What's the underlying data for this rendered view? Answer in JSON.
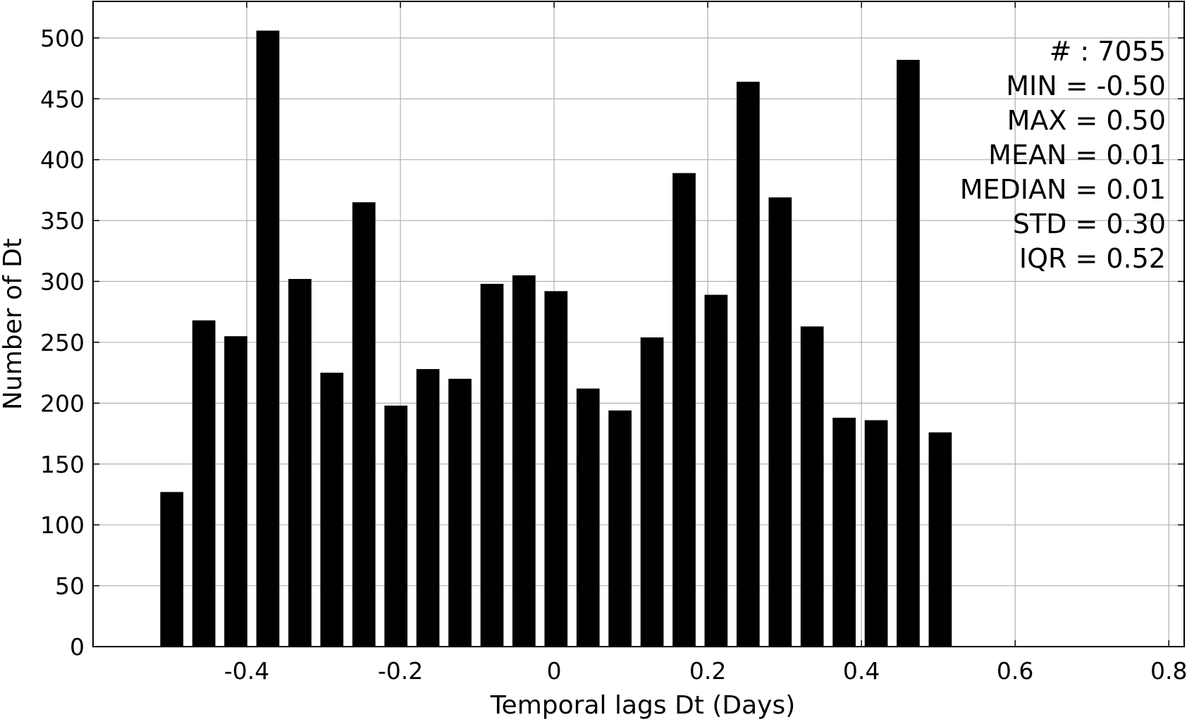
{
  "chart_data": {
    "type": "bar",
    "xlabel": "Temporal lags Dt (Days)",
    "ylabel": "Number of Dt",
    "xlim": [
      -0.6,
      0.82
    ],
    "ylim": [
      0,
      530
    ],
    "x_ticks": [
      -0.4,
      -0.2,
      0,
      0.2,
      0.4,
      0.6,
      0.8
    ],
    "x_tick_labels": [
      "-0.4",
      "-0.2",
      "0",
      "0.2",
      "0.4",
      "0.6",
      "0.8"
    ],
    "y_ticks": [
      0,
      50,
      100,
      150,
      200,
      250,
      300,
      350,
      400,
      450,
      500
    ],
    "y_tick_labels": [
      "0",
      "50",
      "100",
      "150",
      "200",
      "250",
      "300",
      "350",
      "400",
      "450",
      "500"
    ],
    "grid": true,
    "bar_color": "#000000",
    "bar_width": 0.03,
    "x": [
      -0.4975,
      -0.4558,
      -0.4142,
      -0.3725,
      -0.3308,
      -0.2892,
      -0.2475,
      -0.2058,
      -0.1642,
      -0.1225,
      -0.0808,
      -0.0392,
      0.0025,
      0.0442,
      0.0858,
      0.1275,
      0.1692,
      0.2108,
      0.2525,
      0.2942,
      0.3358,
      0.3775,
      0.4192,
      0.4608,
      0.5025
    ],
    "values": [
      127,
      268,
      255,
      506,
      302,
      225,
      365,
      198,
      228,
      220,
      298,
      305,
      292,
      212,
      194,
      254,
      389,
      289,
      464,
      369,
      263,
      188,
      186,
      482,
      176
    ],
    "stats": [
      "# : 7055",
      "MIN = -0.50",
      "MAX =  0.50",
      "MEAN = 0.01",
      "MEDIAN = 0.01",
      "STD = 0.30",
      "IQR = 0.52"
    ]
  }
}
